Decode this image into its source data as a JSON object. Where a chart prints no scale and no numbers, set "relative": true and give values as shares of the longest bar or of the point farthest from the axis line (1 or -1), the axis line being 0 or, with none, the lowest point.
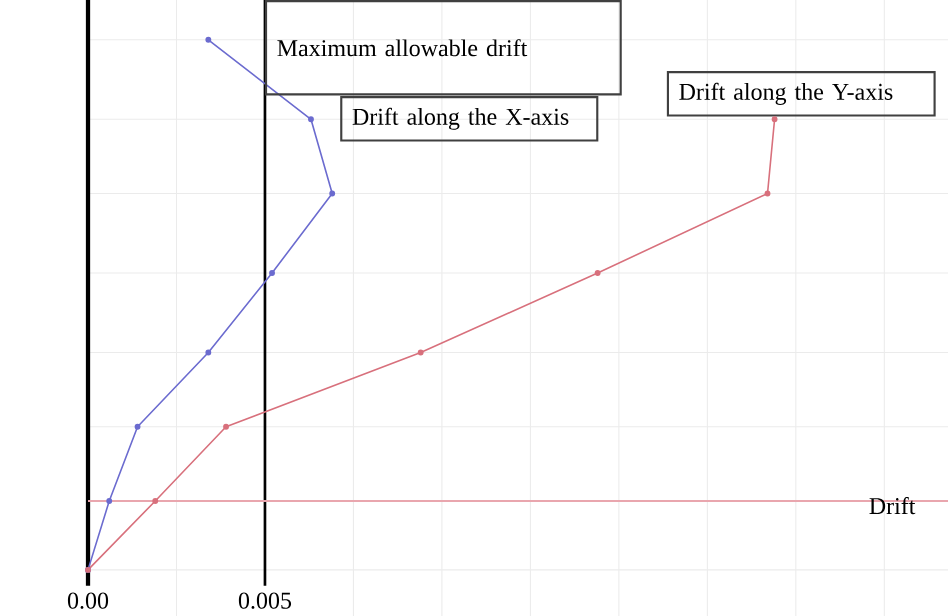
{
  "chart_data": {
    "type": "line",
    "relative": true,
    "xlabel": "Drift",
    "grid": true,
    "marker": "circle",
    "line_style": "solid",
    "xlim": [
      0,
      0.0243
    ],
    "xticks": [
      {
        "value": 0,
        "label": "0.00"
      },
      {
        "value": 0.0025,
        "label": null
      },
      0.005,
      {
        "value": 0.0075,
        "label": null
      },
      {
        "value": 0.01,
        "label": null
      },
      {
        "value": 0.0125,
        "label": null
      },
      {
        "value": 0.015,
        "label": null
      },
      {
        "value": 0.0175,
        "label": null
      },
      {
        "value": 0.02,
        "label": null
      },
      {
        "value": 0.0225,
        "label": null
      }
    ],
    "series": [
      {
        "name": "Drift along the X-axis",
        "color": "#6b6bcf",
        "x": [
          0,
          0.0006,
          0.0014,
          0.0034,
          0.0052,
          0.0069,
          0.0063,
          0.0034
        ],
        "values": [
          0,
          0.13,
          0.27,
          0.41,
          0.56,
          0.71,
          0.85,
          1.0
        ]
      },
      {
        "name": "Drift along the Y-axis",
        "color": "#d8707c",
        "x": [
          0,
          0.0019,
          0.0039,
          0.0094,
          0.0144,
          0.0192,
          0.0194,
          null
        ],
        "values": [
          0,
          0.13,
          0.27,
          0.41,
          0.56,
          0.71,
          0.85,
          null
        ]
      }
    ],
    "ref_lines": [
      {
        "axis": "x",
        "value": 0.005,
        "label": "Maximum allowable drift",
        "color": "#000000"
      },
      {
        "axis": "y",
        "value": 0.13,
        "color": "#e9a6ae"
      }
    ]
  }
}
